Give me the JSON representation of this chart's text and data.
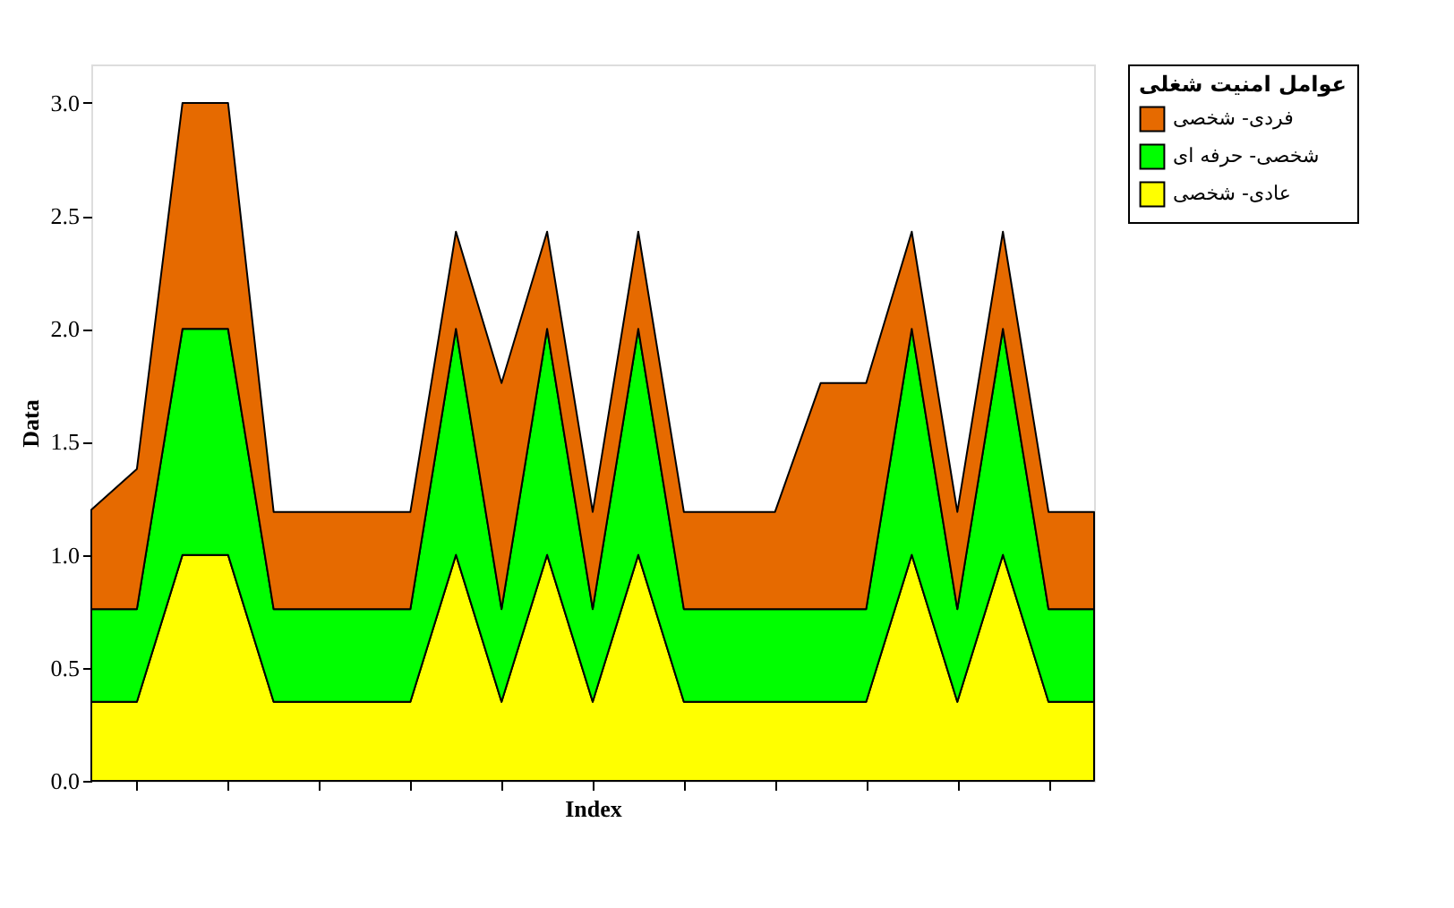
{
  "chart_data": {
    "type": "area",
    "stacked": true,
    "xlabel": "Index",
    "ylabel": "Data",
    "legend_title": "عوامل امنیت شغلی",
    "legend": "top right",
    "grid": false,
    "tick_labels": "y",
    "categories": [
      null,
      null,
      null,
      null,
      null,
      null,
      null,
      null,
      null,
      null,
      null,
      null,
      null,
      null,
      null,
      null,
      null,
      null,
      null,
      null,
      null,
      null,
      null
    ],
    "ylim": [
      0,
      3.17
    ],
    "yticks": [
      {
        "value": 0,
        "label": "0.0"
      },
      0.5,
      {
        "value": 1,
        "label": "1.0"
      },
      1.5,
      {
        "value": 2,
        "label": "2.0"
      },
      2.5,
      {
        "value": 3,
        "label": "3.0"
      }
    ],
    "series": [
      {
        "name": "عادی- شخصی",
        "color": "#ffff00",
        "values": [
          0.35,
          0.35,
          1.0,
          1.0,
          0.35,
          0.35,
          0.35,
          0.35,
          1.0,
          0.35,
          1.0,
          0.35,
          1.0,
          0.35,
          0.35,
          0.35,
          0.35,
          0.35,
          1.0,
          0.35,
          1.0,
          0.35,
          0.35
        ]
      },
      {
        "name": "شخصی- حرفه ای",
        "color": "#00ff00",
        "values": [
          0.41,
          0.41,
          1.0,
          1.0,
          0.41,
          0.41,
          0.41,
          0.41,
          1.0,
          0.41,
          1.0,
          0.41,
          1.0,
          0.41,
          0.41,
          0.41,
          0.41,
          0.41,
          1.0,
          0.41,
          1.0,
          0.41,
          0.41
        ]
      },
      {
        "name": "فردی- شخصی",
        "color": "#e66a00",
        "values": [
          0.44,
          0.62,
          1.0,
          1.0,
          0.43,
          0.43,
          0.43,
          0.43,
          0.43,
          1.0,
          0.43,
          0.43,
          0.43,
          0.43,
          0.43,
          0.43,
          1.0,
          1.0,
          0.43,
          0.43,
          0.43,
          0.43,
          0.43
        ]
      }
    ]
  }
}
